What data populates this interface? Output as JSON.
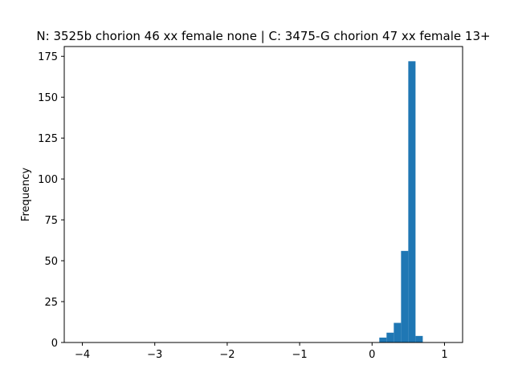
{
  "chart_data": {
    "type": "histogram",
    "title": "N: 3525b chorion 46 xx female none | C: 3475-G chorion 47 xx female 13+",
    "xlabel": "",
    "ylabel": "Frequency",
    "xlim": [
      -4.25,
      1.25
    ],
    "ylim": [
      0,
      181
    ],
    "xticks": [
      -4,
      -3,
      -2,
      -1,
      0,
      1
    ],
    "xtick_labels": [
      "−4",
      "−3",
      "−2",
      "−1",
      "0",
      "1"
    ],
    "yticks": [
      0,
      25,
      50,
      75,
      100,
      125,
      150,
      175
    ],
    "ytick_labels": [
      "0",
      "25",
      "50",
      "75",
      "100",
      "125",
      "150",
      "175"
    ],
    "bar_color": "#1f77b4",
    "grid": false,
    "bins": [
      {
        "x0": 0.1,
        "x1": 0.2,
        "count": 3
      },
      {
        "x0": 0.2,
        "x1": 0.3,
        "count": 6
      },
      {
        "x0": 0.3,
        "x1": 0.4,
        "count": 12
      },
      {
        "x0": 0.4,
        "x1": 0.5,
        "count": 56
      },
      {
        "x0": 0.5,
        "x1": 0.6,
        "count": 172
      },
      {
        "x0": 0.6,
        "x1": 0.7,
        "count": 4
      }
    ]
  }
}
